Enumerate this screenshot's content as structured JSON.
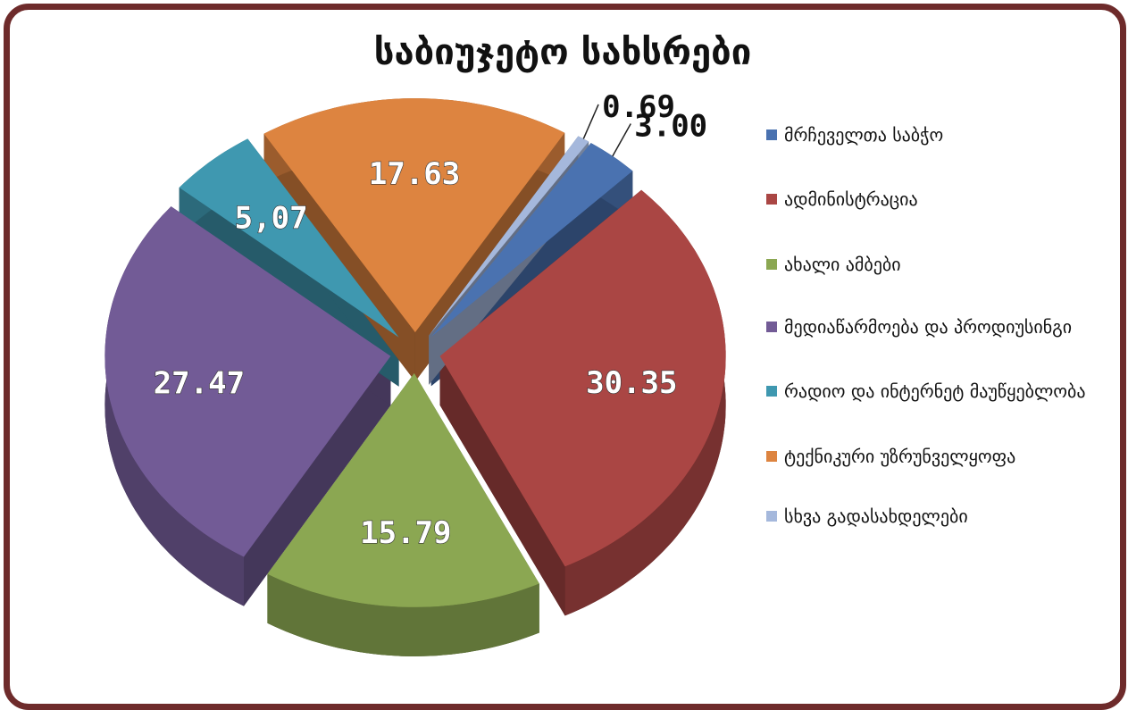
{
  "chart_data": {
    "type": "pie",
    "title": "საბიუჯეტო სახსრები",
    "categories": [
      "მრჩეველთა საბჭო",
      "ადმინისტრაცია",
      "ახალი ამბები",
      "მედიაწარმოება და პროდიუსინგი",
      "რადიო და ინტერნეტ მაუწყებლობა",
      "ტექნიკური უზრუნველყოფა",
      "სხვა გადასახდელები"
    ],
    "values": [
      3.0,
      30.35,
      15.79,
      27.47,
      5.07,
      17.63,
      0.69
    ],
    "value_labels": [
      "3.00",
      "30.35",
      "15.79",
      "27.47",
      "5,07",
      "17.63",
      "0.69"
    ],
    "colors": [
      "#4a72b0",
      "#aa4644",
      "#8ba752",
      "#725b96",
      "#3f98b0",
      "#dd8440",
      "#a5b8dc"
    ],
    "legend": "right"
  }
}
